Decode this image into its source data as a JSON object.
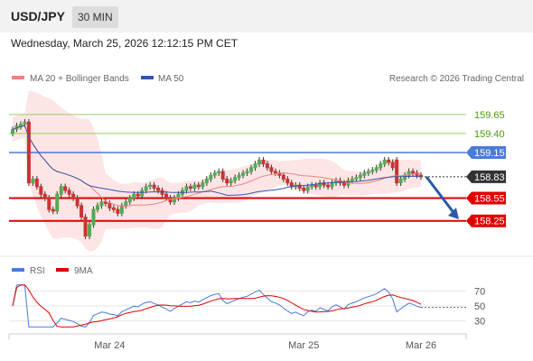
{
  "header": {
    "symbol": "USD/JPY",
    "timeframe": "30 MIN",
    "datetime": "Wednesday, March 25, 2026 12:12:15 PM CET"
  },
  "legend": {
    "ma20_label": "MA 20 + Bollinger Bands",
    "ma50_label": "MA 50",
    "credit": "Research © 2026 Trading Central",
    "rsi_label": "RSI",
    "rsi_ma_label": "9MA"
  },
  "colors": {
    "ma20": "#f08080",
    "ma50": "#3355aa",
    "resistance": "#9acd62",
    "pivot": "#4a7bd6",
    "support": "#e00000",
    "current": "#333333",
    "bull": "#55aa55",
    "bear": "#cc3333",
    "arrow": "#2a5aa8"
  },
  "chart_data": {
    "type": "candlestick",
    "price_axis": {
      "min": 157.95,
      "max": 159.85
    },
    "levels": [
      {
        "name": "resistance-2",
        "value": 159.65,
        "label": "159.65",
        "kind": "resistance"
      },
      {
        "name": "resistance-1",
        "value": 159.4,
        "label": "159.40",
        "kind": "resistance"
      },
      {
        "name": "pivot",
        "value": 159.15,
        "label": "159.15",
        "kind": "pivot"
      },
      {
        "name": "current",
        "value": 158.83,
        "label": "158.83",
        "kind": "current"
      },
      {
        "name": "support-1",
        "value": 158.55,
        "label": "158.55",
        "kind": "support"
      },
      {
        "name": "support-2",
        "value": 158.25,
        "label": "158.25",
        "kind": "support"
      }
    ],
    "x_ticks": [
      {
        "label": "Mar 24",
        "index": 24
      },
      {
        "label": "Mar 25",
        "index": 72
      },
      {
        "label": "Mar 26",
        "index": 101
      }
    ],
    "close": [
      159.45,
      159.5,
      159.52,
      159.55,
      158.75,
      158.8,
      158.7,
      158.6,
      158.55,
      158.4,
      158.38,
      158.6,
      158.7,
      158.65,
      158.6,
      158.55,
      158.45,
      158.3,
      158.05,
      158.2,
      158.4,
      158.45,
      158.5,
      158.48,
      158.42,
      158.4,
      158.35,
      158.45,
      158.5,
      158.55,
      158.6,
      158.58,
      158.65,
      158.7,
      158.72,
      158.68,
      158.65,
      158.6,
      158.55,
      158.5,
      158.55,
      158.6,
      158.65,
      158.7,
      158.68,
      158.72,
      158.7,
      158.75,
      158.8,
      158.85,
      158.88,
      158.9,
      158.8,
      158.75,
      158.78,
      158.82,
      158.85,
      158.88,
      158.9,
      158.95,
      159.0,
      159.05,
      159.0,
      158.95,
      158.9,
      158.88,
      158.85,
      158.8,
      158.75,
      158.7,
      158.72,
      158.68,
      158.65,
      158.7,
      158.72,
      158.7,
      158.75,
      158.72,
      158.7,
      158.75,
      158.78,
      158.75,
      158.72,
      158.78,
      158.8,
      158.82,
      158.85,
      158.88,
      158.9,
      158.92,
      158.95,
      159.0,
      159.05,
      159.02,
      158.95,
      158.75,
      158.8,
      158.85,
      158.9,
      158.88,
      158.85,
      158.83
    ],
    "open_offset": [
      -0.05,
      -0.04,
      -0.03,
      -0.03,
      0.8,
      -0.05,
      0.1,
      0.1,
      0.05,
      0.15,
      0.02,
      -0.22,
      -0.1,
      0.05,
      0.05,
      0.05,
      0.1,
      0.15,
      0.25,
      -0.15,
      -0.2,
      -0.05,
      -0.05,
      0.02,
      0.06,
      0.02,
      0.05,
      -0.1,
      -0.05,
      -0.05,
      -0.05,
      0.02,
      -0.07,
      -0.05,
      -0.02,
      0.04,
      0.03,
      0.05,
      0.05,
      0.05,
      -0.05,
      -0.05,
      -0.05,
      -0.05,
      0.02,
      -0.04,
      0.02,
      -0.05,
      -0.05,
      -0.05,
      -0.03,
      -0.02,
      0.1,
      0.05,
      -0.03,
      -0.04,
      -0.03,
      -0.03,
      -0.02,
      -0.05,
      -0.05,
      -0.05,
      0.05,
      0.05,
      0.05,
      0.02,
      0.03,
      0.05,
      0.05,
      0.05,
      -0.02,
      0.04,
      0.03,
      -0.05,
      -0.02,
      0.02,
      -0.05,
      0.03,
      0.02,
      -0.05,
      -0.03,
      0.03,
      0.03,
      -0.06,
      -0.02,
      -0.02,
      -0.03,
      -0.03,
      -0.02,
      -0.02,
      -0.03,
      -0.05,
      -0.05,
      0.03,
      0.07,
      0.3,
      -0.05,
      -0.05,
      -0.05,
      0.02,
      0.03,
      0.02
    ],
    "rsi_axis": {
      "min": 20,
      "max": 80,
      "ticks": [
        70,
        50,
        30
      ]
    }
  }
}
